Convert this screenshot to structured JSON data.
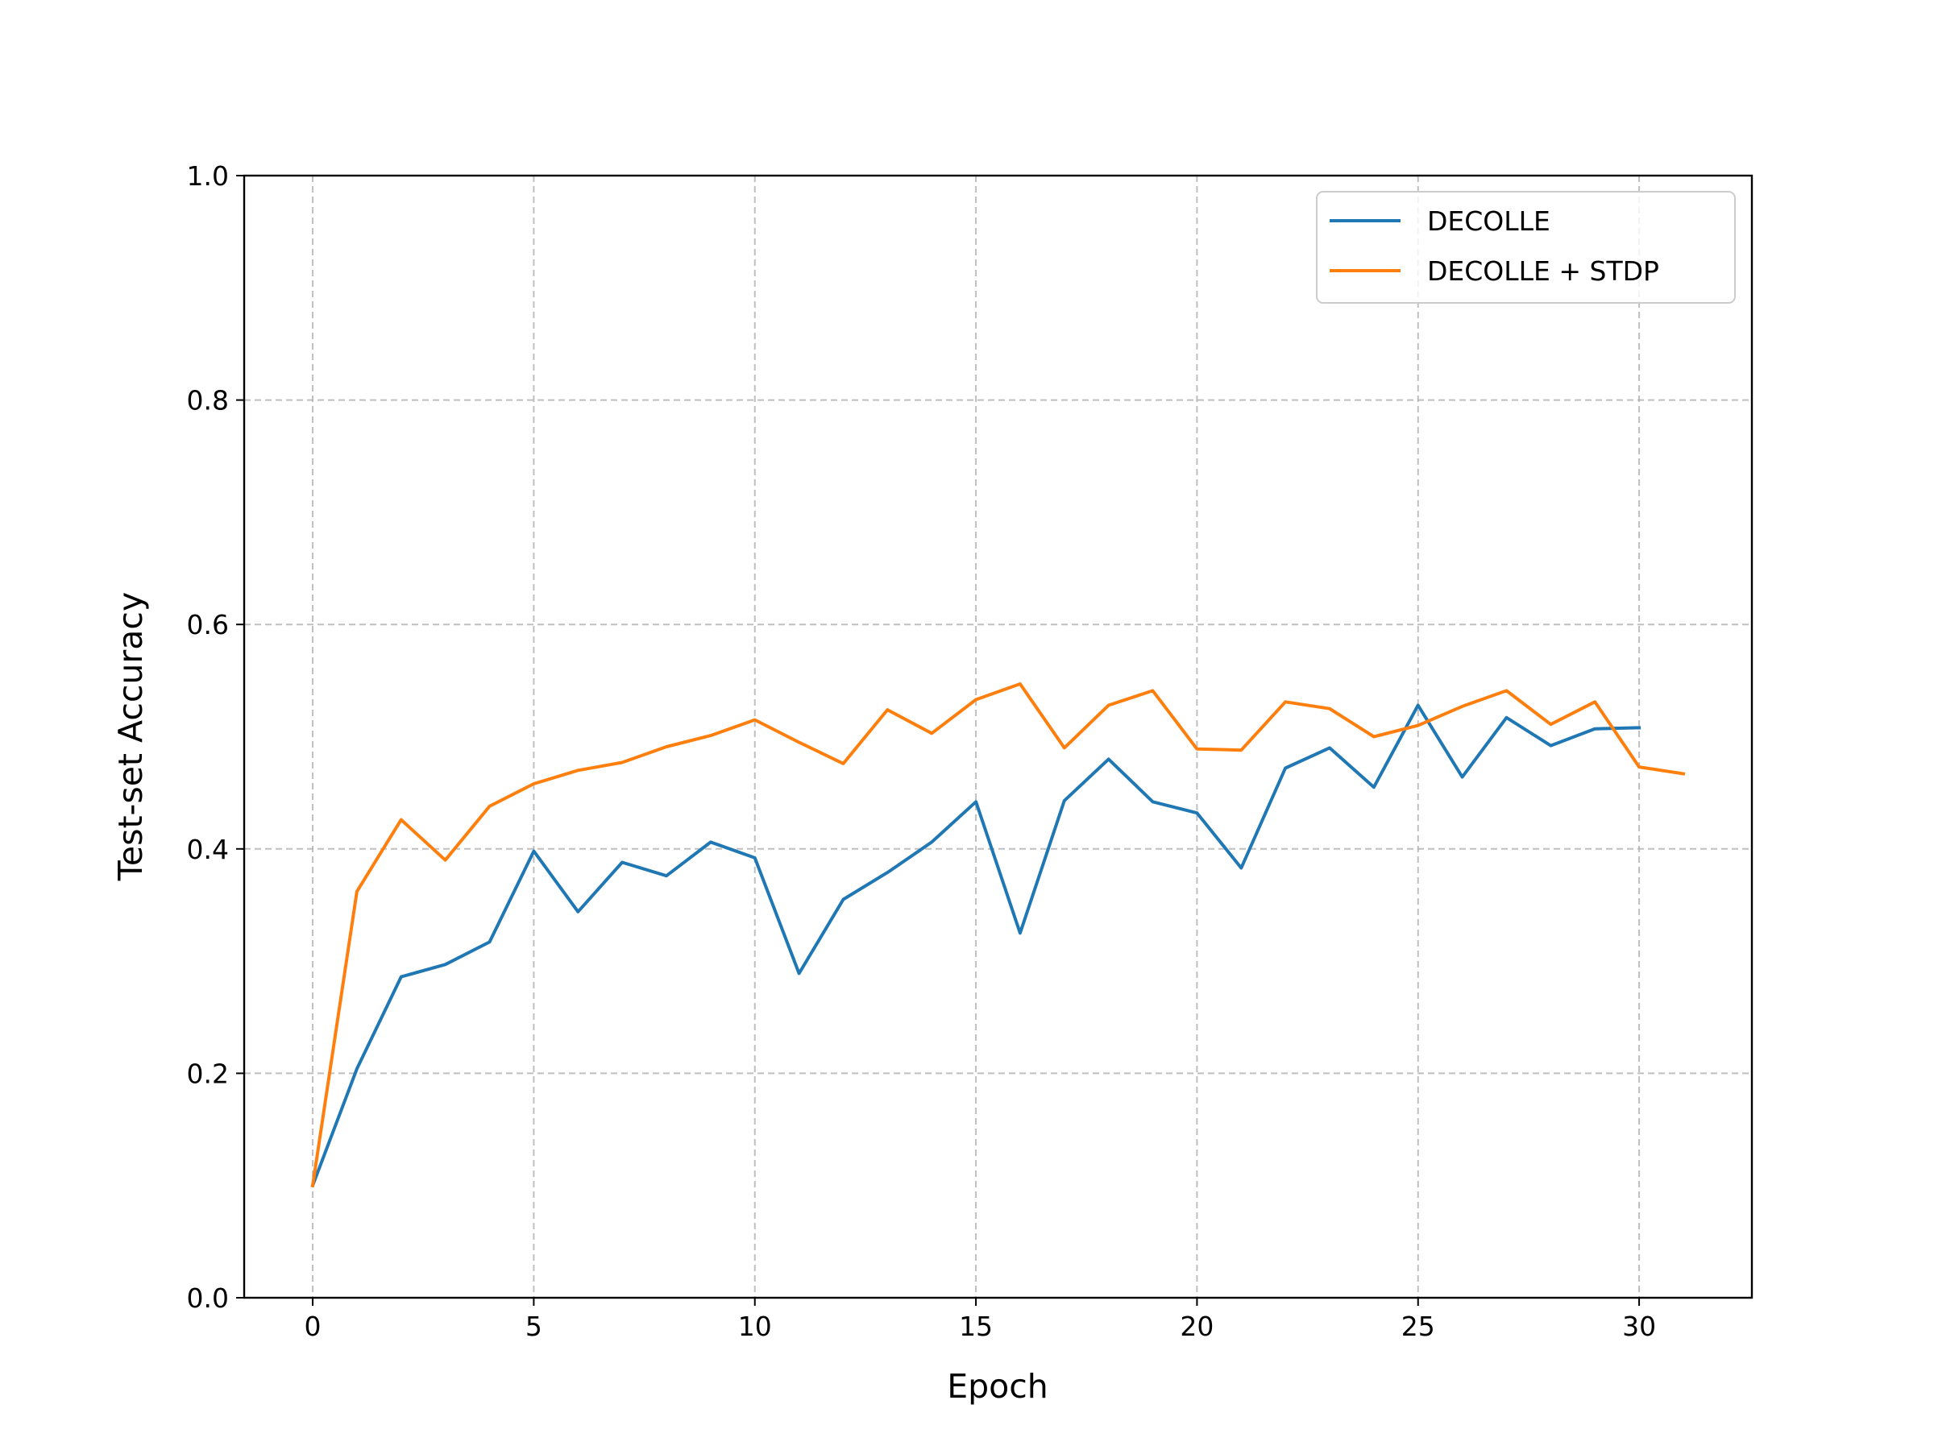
{
  "chart_data": {
    "type": "line",
    "title": "",
    "xlabel": "Epoch",
    "ylabel": "Test-set Accuracy",
    "xlim": [
      -1.55,
      32.55
    ],
    "ylim": [
      0.0,
      1.0
    ],
    "xticks": [
      0,
      5,
      10,
      15,
      20,
      25,
      30
    ],
    "yticks": [
      0.0,
      0.2,
      0.4,
      0.6,
      0.8,
      1.0
    ],
    "xtick_labels": [
      "0",
      "5",
      "10",
      "15",
      "20",
      "25",
      "30"
    ],
    "ytick_labels": [
      "0.0",
      "0.2",
      "0.4",
      "0.6",
      "0.8",
      "1.0"
    ],
    "grid": true,
    "legend_position": "top-right",
    "series": [
      {
        "name": "DECOLLE",
        "color": "#1f77b4",
        "x": [
          0,
          1,
          2,
          3,
          4,
          5,
          6,
          7,
          8,
          9,
          10,
          11,
          12,
          13,
          14,
          15,
          16,
          17,
          18,
          19,
          20,
          21,
          22,
          23,
          24,
          25,
          26,
          27,
          28,
          29,
          30
        ],
        "y": [
          0.1,
          0.204,
          0.286,
          0.297,
          0.317,
          0.398,
          0.344,
          0.388,
          0.376,
          0.406,
          0.392,
          0.289,
          0.355,
          0.379,
          0.406,
          0.442,
          0.325,
          0.443,
          0.48,
          0.442,
          0.432,
          0.383,
          0.472,
          0.49,
          0.455,
          0.528,
          0.464,
          0.517,
          0.492,
          0.507,
          0.508
        ]
      },
      {
        "name": "DECOLLE + STDP",
        "color": "#ff7f0e",
        "x": [
          0,
          1,
          2,
          3,
          4,
          5,
          6,
          7,
          8,
          9,
          10,
          11,
          12,
          13,
          14,
          15,
          16,
          17,
          18,
          19,
          20,
          21,
          22,
          23,
          24,
          25,
          26,
          27,
          28,
          29,
          30,
          31
        ],
        "y": [
          0.1,
          0.362,
          0.426,
          0.39,
          0.438,
          0.458,
          0.47,
          0.477,
          0.491,
          0.501,
          0.515,
          0.495,
          0.476,
          0.524,
          0.503,
          0.533,
          0.547,
          0.49,
          0.528,
          0.541,
          0.489,
          0.488,
          0.531,
          0.525,
          0.5,
          0.51,
          0.527,
          0.541,
          0.511,
          0.531,
          0.473,
          0.467
        ]
      }
    ]
  }
}
